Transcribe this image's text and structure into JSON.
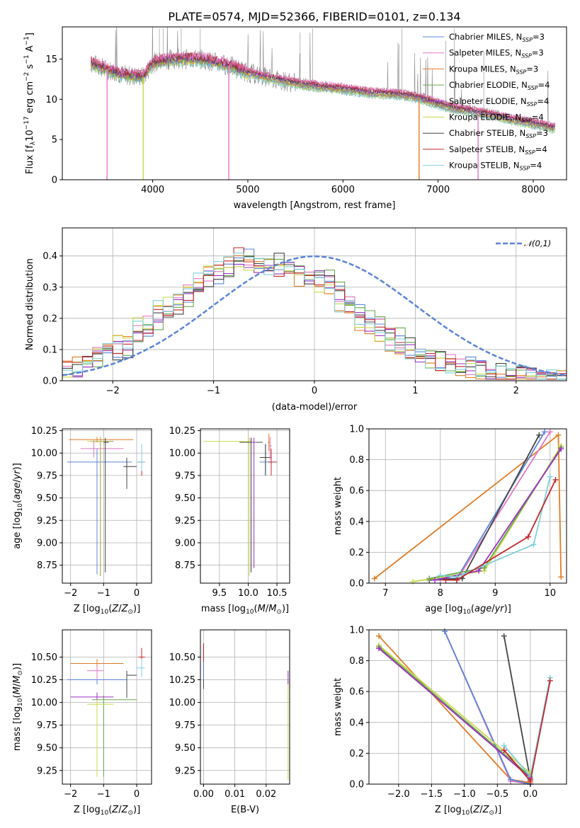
{
  "colors": [
    "#5b84d8",
    "#e377c2",
    "#e07b24",
    "#6aa84f",
    "#9b30c0",
    "#c8d94a",
    "#444444",
    "#c1272d",
    "#7fd1d8"
  ],
  "panel1": {
    "chart_data": {
      "type": "line",
      "title": "PLATE=0574, MJD=52366, FIBERID=0101, z=0.134",
      "xlabel": "wavelength [Angstrom, rest frame]",
      "ylabel": "Flux [f_λ 10^-17 erg cm^-2 s^-1 A^-1]",
      "xlim": [
        3050,
        8350
      ],
      "ylim": [
        0,
        19
      ],
      "xticks": [
        4000,
        5000,
        6000,
        7000,
        8000
      ],
      "yticks": [
        0,
        5,
        10,
        15
      ],
      "legend_position": "upper right",
      "series_names": [
        "Chabrier MILES, N_SSP=3",
        "Salpeter MILES, N_SSP=3",
        "Kroupa MILES, N_SSP=3",
        "Chabrier ELODIE, N_SSP=4",
        "Salpeter ELODIE, N_SSP=4",
        "Kroupa ELODIE, N_SSP=4",
        "Chabrier STELIB, N_SSP=3",
        "Salpeter STELIB, N_SSP=4",
        "Kroupa STELIB, N_SSP=4"
      ],
      "continuum_points": [
        [
          3350,
          14.5
        ],
        [
          3500,
          13.8
        ],
        [
          3700,
          13.0
        ],
        [
          3900,
          12.8
        ],
        [
          4000,
          14.5
        ],
        [
          4200,
          15.0
        ],
        [
          4500,
          15.0
        ],
        [
          4800,
          14.2
        ],
        [
          5000,
          13.3
        ],
        [
          5200,
          12.7
        ],
        [
          5500,
          12.0
        ],
        [
          5800,
          11.5
        ],
        [
          6000,
          11.3
        ],
        [
          6300,
          10.8
        ],
        [
          6600,
          10.6
        ],
        [
          6800,
          10.2
        ],
        [
          7000,
          9.4
        ],
        [
          7200,
          8.8
        ],
        [
          7400,
          8.4
        ],
        [
          7600,
          8.0
        ],
        [
          7800,
          7.4
        ],
        [
          8000,
          7.0
        ],
        [
          8200,
          6.5
        ]
      ],
      "data_extent": [
        3350,
        8230
      ],
      "sharp_drops": [
        {
          "x": 3520,
          "series": "Salpeter MILES"
        },
        {
          "x": 3900,
          "series": "Kroupa ELODIE"
        },
        {
          "x": 4800,
          "series": "Salpeter MILES"
        },
        {
          "x": 6800,
          "series": "Kroupa MILES"
        },
        {
          "x": 7420,
          "series": "Salpeter MILES"
        }
      ]
    }
  },
  "panel2": {
    "chart_data": {
      "type": "histogram",
      "xlabel": "(data-model)/error",
      "ylabel": "Normed distribution",
      "xlim": [
        -2.5,
        2.5
      ],
      "ylim": [
        0,
        0.49
      ],
      "xticks": [
        -2,
        -1,
        0,
        1,
        2
      ],
      "yticks": [
        0.0,
        0.1,
        0.2,
        0.3,
        0.4
      ],
      "legend": [
        "𝒩(0,1)"
      ],
      "bin_edges_start": -2.5,
      "bin_width": 0.1,
      "base_profile": [
        0.03,
        0.04,
        0.05,
        0.07,
        0.08,
        0.08,
        0.09,
        0.1,
        0.12,
        0.13,
        0.15,
        0.18,
        0.19,
        0.21,
        0.23,
        0.24,
        0.26,
        0.28,
        0.3,
        0.33,
        0.34,
        0.35,
        0.36,
        0.38,
        0.4,
        0.39,
        0.38,
        0.37,
        0.38,
        0.36,
        0.36,
        0.35,
        0.34,
        0.33,
        0.34,
        0.33,
        0.31,
        0.29,
        0.27,
        0.25,
        0.23,
        0.2,
        0.18,
        0.17,
        0.15,
        0.14,
        0.12,
        0.11,
        0.1,
        0.09,
        0.08,
        0.07,
        0.06,
        0.06,
        0.05,
        0.05,
        0.04,
        0.04,
        0.03,
        0.03,
        0.02,
        0.02,
        0.02,
        0.02,
        0.02,
        0.02,
        0.01,
        0.01,
        0.01,
        0.01
      ]
    }
  },
  "panel3": {
    "chart_data": {
      "type": "errorbar",
      "xlabel": "Z [log10(Z/Z⊙)]",
      "ylabel": "age [log10(age/yr)]",
      "xlim": [
        -2.25,
        0.45
      ],
      "ylim": [
        8.55,
        10.27
      ],
      "xticks": [
        -2,
        -1,
        0
      ],
      "yticks": [
        8.75,
        9.0,
        9.25,
        9.5,
        9.75,
        10.0,
        10.25
      ],
      "points": [
        {
          "x": -1.2,
          "y": 10.15,
          "xerr": [
            0.85,
            1.1
          ],
          "yerr": [
            0.03,
            0.03
          ],
          "c": 2
        },
        {
          "x": -1.2,
          "y": 9.9,
          "xerr": [
            0.9,
            1.05
          ],
          "yerr": [
            1.25,
            0.15
          ],
          "c": 0
        },
        {
          "x": -1.3,
          "y": 10.05,
          "xerr": [
            0.4,
            0.9
          ],
          "yerr": [
            0.1,
            0.1
          ],
          "c": 1
        },
        {
          "x": -1.1,
          "y": 10.13,
          "xerr": [
            0.3,
            0.4
          ],
          "yerr": [
            1.5,
            0.05
          ],
          "c": 3
        },
        {
          "x": -1.1,
          "y": 10.13,
          "xerr": [
            0.2,
            0.3
          ],
          "yerr": [
            1.5,
            0.05
          ],
          "c": 4
        },
        {
          "x": -1.1,
          "y": 10.13,
          "xerr": [
            0.4,
            0.3
          ],
          "yerr": [
            1.5,
            0.05
          ],
          "c": 5
        },
        {
          "x": -0.3,
          "y": 9.85,
          "xerr": [
            0.1,
            0.3
          ],
          "yerr": [
            0.25,
            0.1
          ],
          "c": 6
        },
        {
          "x": 0.15,
          "y": 9.9,
          "xerr": [
            0.1,
            0.1
          ],
          "yerr": [
            0.15,
            0.2
          ],
          "c": 7
        },
        {
          "x": 0.15,
          "y": 9.9,
          "xerr": [
            0.15,
            0.1
          ],
          "yerr": [
            0.1,
            0.2
          ],
          "c": 8
        },
        {
          "x": -0.95,
          "y": 10.12,
          "xerr": [
            0.05,
            0.1
          ],
          "yerr": [
            1.45,
            0.05
          ],
          "c": 6
        }
      ]
    }
  },
  "panel4": {
    "chart_data": {
      "type": "errorbar",
      "xlabel": "mass [log10(M/M⊙)]",
      "xlim": [
        9.17,
        10.72
      ],
      "ylim": [
        8.55,
        10.27
      ],
      "xticks": [
        9.5,
        10.0,
        10.5
      ],
      "yticks": [
        8.75,
        9.0,
        9.25,
        9.5,
        9.75,
        10.0,
        10.25
      ],
      "points": [
        {
          "x": 10.02,
          "y": 10.13,
          "xerr": [
            0.8,
            0.05
          ],
          "yerr": [
            1.5,
            0.05
          ],
          "c": 5
        },
        {
          "x": 10.05,
          "y": 10.12,
          "xerr": [
            0.1,
            0.05
          ],
          "yerr": [
            1.45,
            0.05
          ],
          "c": 3
        },
        {
          "x": 10.05,
          "y": 10.12,
          "xerr": [
            0.2,
            0.2
          ],
          "yerr": [
            1.45,
            0.05
          ],
          "c": 6
        },
        {
          "x": 10.3,
          "y": 9.9,
          "xerr": [
            0.1,
            0.1
          ],
          "yerr": [
            0.15,
            0.2
          ],
          "c": 0
        },
        {
          "x": 10.3,
          "y": 9.95,
          "xerr": [
            0.1,
            0.1
          ],
          "yerr": [
            0.2,
            0.15
          ],
          "c": 6
        },
        {
          "x": 10.38,
          "y": 10.08,
          "xerr": [
            0.03,
            0.03
          ],
          "yerr": [
            0.15,
            0.1
          ],
          "c": 1
        },
        {
          "x": 10.4,
          "y": 9.9,
          "xerr": [
            0.05,
            0.1
          ],
          "yerr": [
            0.15,
            0.15
          ],
          "c": 7
        },
        {
          "x": 10.36,
          "y": 10.12,
          "xerr": [
            0.02,
            0.02
          ],
          "yerr": [
            0.1,
            0.1
          ],
          "c": 2
        },
        {
          "x": 10.1,
          "y": 10.12,
          "xerr": [
            0.05,
            0.05
          ],
          "yerr": [
            1.4,
            0.05
          ],
          "c": 4
        }
      ]
    }
  },
  "panel5": {
    "chart_data": {
      "type": "line",
      "xlabel": "age [log10(age/yr)]",
      "ylabel": "mass weight",
      "xlim": [
        6.7,
        10.3
      ],
      "ylim": [
        0,
        1.0
      ],
      "xticks": [
        7,
        8,
        9,
        10
      ],
      "yticks": [
        0.0,
        0.2,
        0.4,
        0.6,
        0.8,
        1.0
      ],
      "series": [
        {
          "c": 2,
          "points": [
            [
              6.8,
              0.03
            ],
            [
              10.15,
              0.96
            ],
            [
              10.2,
              0.04
            ]
          ]
        },
        {
          "c": 0,
          "points": [
            [
              8.0,
              0.03
            ],
            [
              8.3,
              0.03
            ],
            [
              9.9,
              0.98
            ]
          ]
        },
        {
          "c": 1,
          "points": [
            [
              8.0,
              0.02
            ],
            [
              8.3,
              0.02
            ],
            [
              10.0,
              0.98
            ]
          ]
        },
        {
          "c": 6,
          "points": [
            [
              7.8,
              0.02
            ],
            [
              8.4,
              0.03
            ],
            [
              9.8,
              0.96
            ]
          ]
        },
        {
          "c": 5,
          "points": [
            [
              7.5,
              0.01
            ],
            [
              8.8,
              0.08
            ],
            [
              10.2,
              0.89
            ]
          ]
        },
        {
          "c": 3,
          "points": [
            [
              7.8,
              0.03
            ],
            [
              8.8,
              0.1
            ],
            [
              10.2,
              0.88
            ]
          ]
        },
        {
          "c": 4,
          "points": [
            [
              7.9,
              0.02
            ],
            [
              8.7,
              0.08
            ],
            [
              10.2,
              0.87
            ]
          ]
        },
        {
          "c": 8,
          "points": [
            [
              8.0,
              0.05
            ],
            [
              8.3,
              0.04
            ],
            [
              9.7,
              0.25
            ],
            [
              10.0,
              0.69
            ]
          ]
        },
        {
          "c": 7,
          "points": [
            [
              8.1,
              0.02
            ],
            [
              8.3,
              0.02
            ],
            [
              9.6,
              0.3
            ],
            [
              10.1,
              0.67
            ]
          ]
        }
      ]
    }
  },
  "panel6": {
    "chart_data": {
      "type": "errorbar",
      "xlabel": "Z [log10(Z/Z⊙)]",
      "ylabel": "mass [log10(M/M⊙)]",
      "xlim": [
        -2.25,
        0.45
      ],
      "ylim": [
        9.1,
        10.8
      ],
      "xticks": [
        -2,
        -1,
        0
      ],
      "yticks": [
        9.25,
        9.5,
        9.75,
        10.0,
        10.25,
        10.5
      ],
      "points": [
        {
          "x": -1.2,
          "y": 10.43,
          "xerr": [
            0.8,
            0.8
          ],
          "yerr": [
            0.05,
            0.05
          ],
          "c": 2
        },
        {
          "x": -1.2,
          "y": 10.25,
          "xerr": [
            0.9,
            0.9
          ],
          "yerr": [
            0.05,
            0.05
          ],
          "c": 0
        },
        {
          "x": -1.2,
          "y": 10.35,
          "xerr": [
            0.3,
            0.2
          ],
          "yerr": [
            0.1,
            0.05
          ],
          "c": 1
        },
        {
          "x": -1.0,
          "y": 10.03,
          "xerr": [
            0.35,
            1.0
          ],
          "yerr": [
            0.85,
            0.05
          ],
          "c": 3
        },
        {
          "x": -1.2,
          "y": 10.06,
          "xerr": [
            0.8,
            0.5
          ],
          "yerr": [
            0.05,
            0.05
          ],
          "c": 4
        },
        {
          "x": -1.2,
          "y": 9.98,
          "xerr": [
            0.3,
            0.5
          ],
          "yerr": [
            0.8,
            0.05
          ],
          "c": 5
        },
        {
          "x": -0.3,
          "y": 10.3,
          "xerr": [
            0.01,
            0.3
          ],
          "yerr": [
            0.25,
            0.05
          ],
          "c": 6
        },
        {
          "x": 0.15,
          "y": 10.5,
          "xerr": [
            0.1,
            0.1
          ],
          "yerr": [
            0.05,
            0.1
          ],
          "c": 7
        },
        {
          "x": 0.15,
          "y": 10.38,
          "xerr": [
            0.15,
            0.1
          ],
          "yerr": [
            0.1,
            0.1
          ],
          "c": 8
        }
      ]
    }
  },
  "panel7": {
    "chart_data": {
      "type": "errorbar",
      "xlabel": "E(B-V)",
      "xlim": [
        -0.001,
        0.0275
      ],
      "ylim": [
        9.1,
        10.8
      ],
      "xticks": [
        0.0,
        0.01,
        0.02
      ],
      "yticks": [
        9.25,
        9.5,
        9.75,
        10.0,
        10.25,
        10.5
      ],
      "points": [
        {
          "x": 0.0,
          "y": 10.4,
          "xerr": [
            0.0,
            0.0
          ],
          "yerr": [
            0.25,
            0.25
          ],
          "c": 6
        },
        {
          "x": 0.0,
          "y": 10.5,
          "xerr": [
            0.0,
            0.0
          ],
          "yerr": [
            0.1,
            0.15
          ],
          "c": 7
        },
        {
          "x": 0.0,
          "y": 10.35,
          "xerr": [
            0.0,
            0.0
          ],
          "yerr": [
            0.1,
            0.1
          ],
          "c": 0
        },
        {
          "x": 0.027,
          "y": 9.7,
          "xerr": [
            0.0,
            0.0
          ],
          "yerr": [
            0.55,
            0.55
          ],
          "c": 5
        },
        {
          "x": 0.027,
          "y": 10.25,
          "xerr": [
            0.0,
            0.0
          ],
          "yerr": [
            0.05,
            0.1
          ],
          "c": 4
        }
      ]
    }
  },
  "panel8": {
    "chart_data": {
      "type": "line",
      "xlabel": "Z [log10(Z/Z⊙)]",
      "ylabel": "mass weight",
      "xlim": [
        -2.45,
        0.55
      ],
      "ylim": [
        0,
        1.0
      ],
      "xticks": [
        -2.0,
        -1.5,
        -1.0,
        -0.5,
        0.0
      ],
      "yticks": [
        0.0,
        0.2,
        0.4,
        0.6,
        0.8,
        1.0
      ],
      "series": [
        {
          "c": 2,
          "points": [
            [
              -2.3,
              0.96
            ],
            [
              -0.3,
              0.03
            ],
            [
              0.0,
              0.01
            ]
          ]
        },
        {
          "c": 1,
          "points": [
            [
              -1.3,
              0.99
            ],
            [
              -0.3,
              0.02
            ],
            [
              0.0,
              0.0
            ]
          ]
        },
        {
          "c": 0,
          "points": [
            [
              -1.3,
              0.99
            ],
            [
              -0.3,
              0.03
            ],
            [
              0.0,
              0.0
            ]
          ]
        },
        {
          "c": 6,
          "points": [
            [
              -0.4,
              0.96
            ],
            [
              0.0,
              0.03
            ]
          ]
        },
        {
          "c": 5,
          "points": [
            [
              -2.3,
              0.9
            ],
            [
              0.0,
              0.07
            ]
          ]
        },
        {
          "c": 3,
          "points": [
            [
              -2.3,
              0.89
            ],
            [
              0.0,
              0.05
            ]
          ]
        },
        {
          "c": 4,
          "points": [
            [
              -2.3,
              0.88
            ],
            [
              0.0,
              0.04
            ]
          ]
        },
        {
          "c": 8,
          "points": [
            [
              -0.4,
              0.25
            ],
            [
              0.0,
              0.05
            ],
            [
              0.3,
              0.69
            ]
          ]
        },
        {
          "c": 7,
          "points": [
            [
              -0.4,
              0.22
            ],
            [
              0.0,
              0.02
            ],
            [
              0.3,
              0.67
            ]
          ]
        }
      ]
    }
  }
}
